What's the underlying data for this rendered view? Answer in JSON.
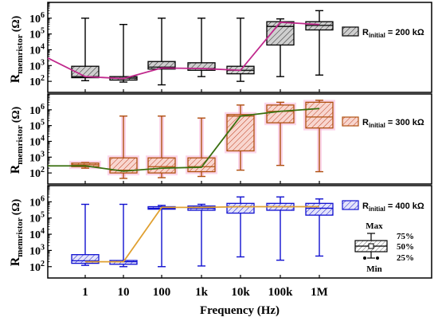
{
  "xaxis": {
    "label": "Frequency (Hz)",
    "ticks": [
      "1",
      "10",
      "100",
      "1k",
      "10k",
      "100k",
      "1M"
    ]
  },
  "yaxis": {
    "label_main": "R",
    "label_sub": "memristor",
    "label_unit": "(Ω)",
    "scale": "log",
    "ylim_exponents": [
      1.3,
      7.0
    ],
    "tick_exponents": [
      2,
      3,
      4,
      5,
      6
    ]
  },
  "box_key": {
    "max": "Max",
    "min": "Min",
    "p75": "75%",
    "p50": "50%",
    "p25": "25%"
  },
  "chart_data": [
    {
      "type": "box",
      "panel": "top",
      "legend": {
        "prefix": "R",
        "sub": "initial",
        "suffix": " = 200 kΩ"
      },
      "colors": {
        "box": "#000000",
        "fill": "#c8c8c8",
        "line": "#c0288c"
      },
      "categories": [
        "1",
        "10",
        "100",
        "1k",
        "10k",
        "100k",
        "1M"
      ],
      "series": [
        {
          "x": "1",
          "min": 110,
          "q1": 170,
          "median": 200,
          "q3": 900,
          "max": 1000000
        },
        {
          "x": "10",
          "min": 90,
          "q1": 120,
          "median": 160,
          "q3": 200,
          "max": 400000
        },
        {
          "x": "100",
          "min": 60,
          "q1": 600,
          "median": 800,
          "q3": 1800,
          "max": 1000000
        },
        {
          "x": "1k",
          "min": 200,
          "q1": 500,
          "median": 650,
          "q3": 1500,
          "max": 1000000
        },
        {
          "x": "10k",
          "min": 100,
          "q1": 300,
          "median": 500,
          "q3": 900,
          "max": 1000000
        },
        {
          "x": "100k",
          "min": 200,
          "q1": 20000,
          "median": 300000,
          "q3": 600000,
          "max": 900000
        },
        {
          "x": "1M",
          "min": 250,
          "q1": 180000,
          "median": 350000,
          "q3": 600000,
          "max": 3000000
        }
      ],
      "mean_line": [
        {
          "x": "0.5",
          "y": 3000
        },
        {
          "x": "1",
          "y": 200
        },
        {
          "x": "10",
          "y": 150
        },
        {
          "x": "100",
          "y": 700
        },
        {
          "x": "1k",
          "y": 650
        },
        {
          "x": "10k",
          "y": 500
        },
        {
          "x": "100k",
          "y": 550000
        },
        {
          "x": "1M",
          "y": 400000
        }
      ]
    },
    {
      "type": "box",
      "panel": "middle",
      "legend": {
        "prefix": "R",
        "sub": "initial",
        "suffix": " = 300 kΩ"
      },
      "colors": {
        "box": "#b05010",
        "fill": "#f6c8c0",
        "glow": "#f8b4d8",
        "line": "#3a7010"
      },
      "categories": [
        "1",
        "10",
        "100",
        "1k",
        "10k",
        "100k",
        "1M"
      ],
      "series": [
        {
          "x": "1",
          "min": 200,
          "q1": 250,
          "median": 330,
          "q3": 420,
          "max": 450
        },
        {
          "x": "10",
          "min": 45,
          "q1": 100,
          "median": 150,
          "q3": 900,
          "max": 400000
        },
        {
          "x": "100",
          "min": 50,
          "q1": 100,
          "median": 250,
          "q3": 900,
          "max": 400000
        },
        {
          "x": "1k",
          "min": 60,
          "q1": 120,
          "median": 250,
          "q3": 900,
          "max": 300000
        },
        {
          "x": "10k",
          "min": 150,
          "q1": 2500,
          "median": 400000,
          "q3": 500000,
          "max": 2000000
        },
        {
          "x": "100k",
          "min": 300,
          "q1": 150000,
          "median": 800000,
          "q3": 2000000,
          "max": 3000000
        },
        {
          "x": "1M",
          "min": 120,
          "q1": 70000,
          "median": 350000,
          "q3": 3000000,
          "max": 4000000
        }
      ],
      "mean_line": [
        {
          "x": "0.5",
          "y": 280
        },
        {
          "x": "1",
          "y": 280
        },
        {
          "x": "10",
          "y": 130
        },
        {
          "x": "100",
          "y": 200
        },
        {
          "x": "1k",
          "y": 230
        },
        {
          "x": "10k",
          "y": 400000
        },
        {
          "x": "100k",
          "y": 800000
        },
        {
          "x": "1M",
          "y": 1200000
        }
      ]
    },
    {
      "type": "box",
      "panel": "bottom",
      "legend": {
        "prefix": "R",
        "sub": "initial",
        "suffix": " = 400 kΩ"
      },
      "colors": {
        "box": "#1010d0",
        "fill": "#d8d8f8",
        "line": "#e0a030"
      },
      "categories": [
        "1",
        "10",
        "100",
        "1k",
        "10k",
        "100k",
        "1M"
      ],
      "series": [
        {
          "x": "1",
          "min": 120,
          "q1": 160,
          "median": 230,
          "q3": 550,
          "max": 700000
        },
        {
          "x": "10",
          "min": 100,
          "q1": 140,
          "median": 200,
          "q3": 240,
          "max": 700000
        },
        {
          "x": "100",
          "min": 100,
          "q1": 350000,
          "median": 400000,
          "q3": 500000,
          "max": 600000
        },
        {
          "x": "1k",
          "min": 110,
          "q1": 300000,
          "median": 400000,
          "q3": 550000,
          "max": 700000
        },
        {
          "x": "10k",
          "min": 400,
          "q1": 200000,
          "median": 500000,
          "q3": 800000,
          "max": 2000000
        },
        {
          "x": "100k",
          "min": 250,
          "q1": 300000,
          "median": 500000,
          "q3": 800000,
          "max": 2000000
        },
        {
          "x": "1M",
          "min": 450,
          "q1": 150000,
          "median": 400000,
          "q3": 800000,
          "max": 1500000
        }
      ],
      "mean_line": [
        {
          "x": "1",
          "y": 200
        },
        {
          "x": "10",
          "y": 200
        },
        {
          "x": "100",
          "y": 450000
        },
        {
          "x": "1k",
          "y": 450000
        },
        {
          "x": "10k",
          "y": 500000
        },
        {
          "x": "100k",
          "y": 500000
        },
        {
          "x": "1M",
          "y": 500000
        }
      ]
    }
  ]
}
